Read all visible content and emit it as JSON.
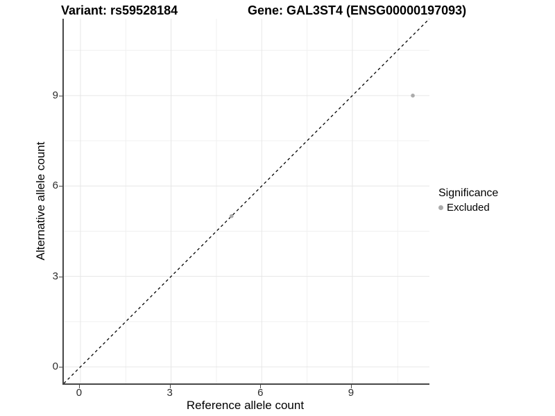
{
  "chart_data": {
    "type": "scatter",
    "title_left": "Variant: rs59528184",
    "title_right": "Gene: GAL3ST4 (ENSG00000197093)",
    "xlabel": "Reference allele count",
    "ylabel": "Alternative allele count",
    "xlim": [
      -0.55,
      11.55
    ],
    "ylim": [
      -0.55,
      11.55
    ],
    "major_ticks": [
      0,
      3,
      6,
      9
    ],
    "minor_ticks": [
      1.5,
      4.5,
      7.5,
      10.5
    ],
    "grid": "major+minor",
    "identity_line": {
      "type": "dashed",
      "color": "#000000",
      "slope": 1,
      "intercept": 0
    },
    "series": [
      {
        "name": "Excluded",
        "color": "#ababab",
        "points": [
          {
            "x": 5,
            "y": 5
          },
          {
            "x": 11,
            "y": 9
          }
        ]
      }
    ],
    "legend": {
      "title": "Significance",
      "position": "right",
      "entries": [
        {
          "label": "Excluded",
          "color": "#ababab"
        }
      ]
    },
    "colors": {
      "axis_line": "#464646",
      "grid_major": "#e6e6e6",
      "grid_minor": "#f0f0f0",
      "point": "#ababab"
    }
  }
}
